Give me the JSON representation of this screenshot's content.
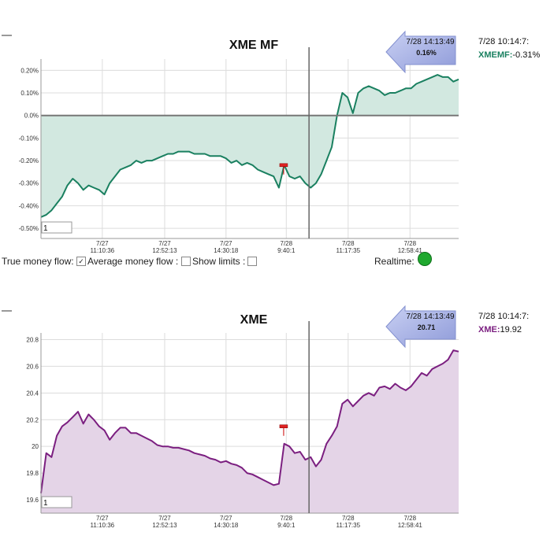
{
  "chart_data": [
    {
      "type": "area",
      "title": "XME MF",
      "series": [
        {
          "name": "XMEMF",
          "color": "#1a8060",
          "fill": "#d2e8e0",
          "values": [
            -0.45,
            -0.44,
            -0.42,
            -0.39,
            -0.36,
            -0.31,
            -0.28,
            -0.3,
            -0.33,
            -0.31,
            -0.32,
            -0.33,
            -0.35,
            -0.3,
            -0.27,
            -0.24,
            -0.23,
            -0.22,
            -0.2,
            -0.21,
            -0.2,
            -0.2,
            -0.19,
            -0.18,
            -0.17,
            -0.17,
            -0.16,
            -0.16,
            -0.16,
            -0.17,
            -0.17,
            -0.17,
            -0.18,
            -0.18,
            -0.18,
            -0.19,
            -0.21,
            -0.2,
            -0.22,
            -0.21,
            -0.22,
            -0.24,
            -0.25,
            -0.26,
            -0.27,
            -0.32,
            -0.22,
            -0.27,
            -0.28,
            -0.27,
            -0.3,
            -0.32,
            -0.3,
            -0.26,
            -0.2,
            -0.14,
            0.0,
            0.1,
            0.08,
            0.01,
            0.1,
            0.12,
            0.13,
            0.12,
            0.11,
            0.09,
            0.1,
            0.1,
            0.11,
            0.12,
            0.12,
            0.14,
            0.15,
            0.16,
            0.17,
            0.18,
            0.17,
            0.17,
            0.15,
            0.16
          ]
        }
      ],
      "ylim": [
        -0.545,
        0.25
      ],
      "yticks": [
        {
          "value": 0.2,
          "label": "0.20%"
        },
        {
          "value": 0.1,
          "label": "0.10%"
        },
        {
          "value": 0,
          "label": "0.0%"
        },
        {
          "value": -0.1,
          "label": "-0.10%"
        },
        {
          "value": -0.2,
          "label": "-0.20%"
        },
        {
          "value": -0.3,
          "label": "-0.30%"
        },
        {
          "value": -0.4,
          "label": "-0.40%"
        },
        {
          "value": -0.5,
          "label": "-0.50%"
        }
      ],
      "xlim": [
        0,
        79
      ],
      "xticks": [
        {
          "value": 11.6,
          "label": [
            "7/27",
            "11:10:36"
          ]
        },
        {
          "value": 23.4,
          "label": [
            "7/27",
            "12:52:13"
          ]
        },
        {
          "value": 35,
          "label": [
            "7/27",
            "14:30:18"
          ]
        },
        {
          "value": 46.4,
          "label": [
            "7/28",
            "9:40:1"
          ]
        },
        {
          "value": 58.1,
          "label": [
            "7/28",
            "11:17:35"
          ]
        },
        {
          "value": 69.8,
          "label": [
            "7/28",
            "12:58:41"
          ]
        }
      ],
      "grid": true,
      "zero_line": true,
      "crosshair_x": 50.7,
      "flag": {
        "x": 45.9,
        "y": -0.22
      },
      "cursor": {
        "time": "7/28 14:13:49",
        "value": "0.16%"
      },
      "readout": {
        "time": "7/28 10:14:7:",
        "name": "XMEMF:",
        "value": "-0.31%"
      },
      "input_value": "1"
    },
    {
      "type": "area",
      "title": "XME",
      "series": [
        {
          "name": "XME",
          "color": "#7b1f80",
          "fill": "#e4d4e7",
          "values": [
            19.65,
            19.95,
            19.92,
            20.08,
            20.15,
            20.18,
            20.22,
            20.26,
            20.17,
            20.24,
            20.2,
            20.15,
            20.12,
            20.05,
            20.1,
            20.14,
            20.14,
            20.1,
            20.1,
            20.08,
            20.06,
            20.04,
            20.01,
            20.0,
            20.0,
            19.99,
            19.99,
            19.98,
            19.97,
            19.95,
            19.94,
            19.93,
            19.91,
            19.9,
            19.88,
            19.89,
            19.87,
            19.86,
            19.84,
            19.8,
            19.79,
            19.77,
            19.75,
            19.73,
            19.71,
            19.72,
            20.02,
            20.0,
            19.95,
            19.96,
            19.9,
            19.92,
            19.85,
            19.9,
            20.02,
            20.08,
            20.15,
            20.32,
            20.35,
            20.3,
            20.34,
            20.38,
            20.4,
            20.38,
            20.44,
            20.45,
            20.43,
            20.47,
            20.44,
            20.42,
            20.45,
            20.5,
            20.55,
            20.53,
            20.58,
            20.6,
            20.62,
            20.65,
            20.72,
            20.71
          ]
        }
      ],
      "ylim": [
        19.5,
        20.85
      ],
      "yticks": [
        20.8,
        20.6,
        20.4,
        20.2,
        20,
        19.8,
        19.6
      ],
      "xlim": [
        0,
        79
      ],
      "xticks": [
        {
          "value": 11.6,
          "label": [
            "7/27",
            "11:10:36"
          ]
        },
        {
          "value": 23.4,
          "label": [
            "7/27",
            "12:52:13"
          ]
        },
        {
          "value": 35,
          "label": [
            "7/27",
            "14:30:18"
          ]
        },
        {
          "value": 46.4,
          "label": [
            "7/28",
            "9:40:1"
          ]
        },
        {
          "value": 58.1,
          "label": [
            "7/28",
            "11:17:35"
          ]
        },
        {
          "value": 69.8,
          "label": [
            "7/28",
            "12:58:41"
          ]
        }
      ],
      "grid": true,
      "zero_line": false,
      "crosshair_x": 50.7,
      "flag": {
        "x": 45.9,
        "y": 20.15
      },
      "cursor": {
        "time": "7/28 14:13:49",
        "value": "20.71"
      },
      "readout": {
        "time": "7/28 10:14:7:",
        "name": "XME:",
        "value": "19.92"
      },
      "input_value": "1"
    }
  ],
  "controls": {
    "true_money_flow": {
      "label": "True money flow:",
      "checked": true
    },
    "average_money_flow": {
      "label": "Average money flow :",
      "checked": false
    },
    "show_limits": {
      "label": "Show limits :",
      "checked": false
    },
    "realtime": {
      "label": "Realtime:"
    }
  }
}
